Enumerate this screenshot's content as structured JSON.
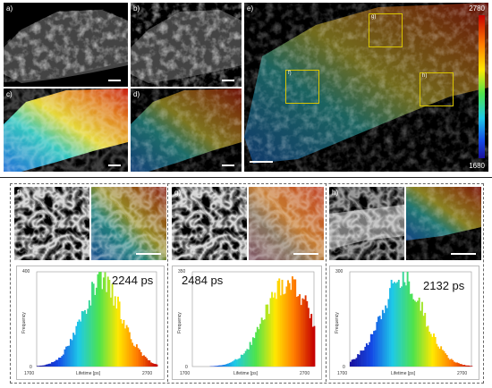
{
  "panels": {
    "a": "a)",
    "b": "b)",
    "c": "c)",
    "d": "d)",
    "e": "e)",
    "f": "f)",
    "g": "g)",
    "h": "h)"
  },
  "roi": {
    "f": "f)",
    "g": "g)",
    "h": "h)"
  },
  "colorbar": {
    "max": "2780",
    "min": "1680"
  },
  "histograms": [
    {
      "id": "f",
      "value_text": "2244 ps",
      "ymax": "400",
      "ymin": "0",
      "xmin": "1700",
      "xmax": "2700",
      "xlabel": "Lifetime [ps]",
      "ylabel": "Frequency"
    },
    {
      "id": "g",
      "value_text": "2484 ps",
      "ymax": "350",
      "ymin": "0",
      "xmin": "1700",
      "xmax": "2700",
      "xlabel": "Lifetime [ps]",
      "ylabel": "Frequency"
    },
    {
      "id": "h",
      "value_text": "2132 ps",
      "ymax": "300",
      "ymin": "0",
      "xmin": "1700",
      "xmax": "2700",
      "xlabel": "Lifetime [ps]",
      "ylabel": "Frequency"
    }
  ],
  "chart_data": [
    {
      "type": "bar",
      "title": "2244 ps",
      "xlabel": "Lifetime [ps]",
      "ylabel": "Frequency",
      "xlim": [
        1700,
        2700
      ],
      "ylim": [
        0,
        400
      ],
      "center": 2244,
      "width": 170,
      "peak": 360
    },
    {
      "type": "bar",
      "title": "2484 ps",
      "xlabel": "Lifetime [ps]",
      "ylabel": "Frequency",
      "xlim": [
        1700,
        2700
      ],
      "ylim": [
        0,
        350
      ],
      "center": 2484,
      "width": 190,
      "peak": 320
    },
    {
      "type": "bar",
      "title": "2132 ps",
      "xlabel": "Lifetime [ps]",
      "ylabel": "Frequency",
      "xlim": [
        1700,
        2700
      ],
      "ylim": [
        0,
        300
      ],
      "center": 2132,
      "width": 180,
      "peak": 280
    }
  ]
}
